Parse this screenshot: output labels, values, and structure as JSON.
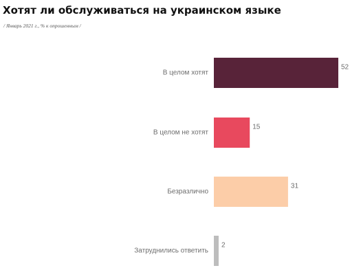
{
  "chart_data": {
    "type": "bar",
    "orientation": "horizontal",
    "title": "Хотят ли обслуживаться на украинском языке",
    "subtitle": "/ Январь 2021 г., % к опрошенным /",
    "categories": [
      "В целом хотят",
      "В целом не хотят",
      "Безразлично",
      "Затруднились ответить"
    ],
    "values": [
      52,
      15,
      31,
      2
    ],
    "colors": [
      "#582339",
      "#e8495e",
      "#fccda8",
      "#bdbdbd"
    ],
    "xlim": [
      0,
      52
    ],
    "grid": false,
    "legend": "none"
  }
}
